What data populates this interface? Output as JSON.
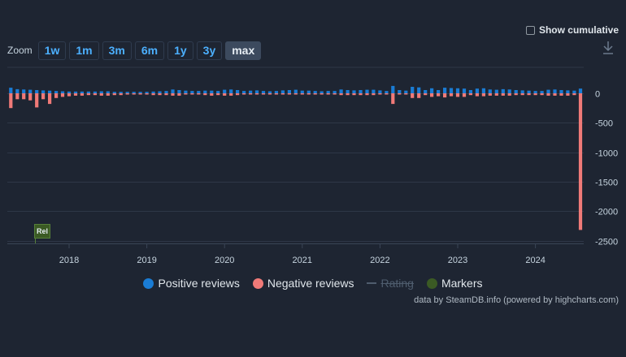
{
  "toolbar": {
    "zoom_label": "Zoom",
    "zoom_buttons": [
      "1w",
      "1m",
      "3m",
      "6m",
      "1y",
      "3y",
      "max"
    ],
    "active_zoom": "max",
    "show_cumulative": "Show cumulative"
  },
  "legend": {
    "positive": "Positive reviews",
    "negative": "Negative reviews",
    "rating": "Rating",
    "markers": "Markers"
  },
  "credits": "data by SteamDB.info (powered by highcharts.com)",
  "marker": {
    "label": "Rel"
  },
  "colors": {
    "positive": "#1a7cd4",
    "negative": "#f07a78",
    "markers": "#3b5a24",
    "grid": "#2e3747",
    "label": "#c6d4df"
  },
  "chart_data": {
    "type": "bar",
    "x_ticks": [
      "2018",
      "2019",
      "2020",
      "2021",
      "2022",
      "2023",
      "2024"
    ],
    "y_ticks": [
      "0",
      "-500",
      "-1000",
      "-1500",
      "-2000",
      "-2500"
    ],
    "ylim": [
      -2500,
      150
    ],
    "x_range": [
      "2017-04",
      "2024-08"
    ],
    "bar_period": "month",
    "series": [
      {
        "name": "Positive reviews",
        "color": "#1a7cd4",
        "values": [
          95,
          70,
          65,
          60,
          55,
          50,
          45,
          40,
          35,
          30,
          30,
          30,
          30,
          30,
          35,
          35,
          25,
          25,
          25,
          25,
          25,
          25,
          30,
          35,
          40,
          65,
          55,
          45,
          40,
          40,
          45,
          45,
          40,
          60,
          65,
          55,
          40,
          45,
          50,
          40,
          35,
          40,
          50,
          55,
          60,
          45,
          45,
          40,
          35,
          40,
          40,
          65,
          55,
          50,
          55,
          60,
          60,
          50,
          40,
          125,
          55,
          45,
          110,
          100,
          55,
          85,
          55,
          95,
          90,
          85,
          80,
          55,
          80,
          85,
          65,
          60,
          70,
          65,
          55,
          50,
          45,
          40,
          40,
          60,
          65,
          55,
          50,
          45,
          80
        ]
      },
      {
        "name": "Negative reviews",
        "color": "#f07a78",
        "values": [
          -250,
          -100,
          -100,
          -120,
          -240,
          -100,
          -180,
          -80,
          -60,
          -50,
          -40,
          -40,
          -30,
          -30,
          -40,
          -40,
          -30,
          -30,
          -20,
          -20,
          -20,
          -20,
          -30,
          -30,
          -30,
          -40,
          -40,
          -20,
          -20,
          -20,
          -30,
          -40,
          -30,
          -40,
          -40,
          -30,
          -20,
          -20,
          -20,
          -20,
          -20,
          -20,
          -20,
          -20,
          -20,
          -20,
          -20,
          -20,
          -20,
          -20,
          -20,
          -30,
          -30,
          -30,
          -30,
          -30,
          -30,
          -20,
          -20,
          -180,
          -20,
          -20,
          -80,
          -80,
          -30,
          -60,
          -50,
          -70,
          -50,
          -60,
          -60,
          -30,
          -50,
          -50,
          -40,
          -40,
          -40,
          -40,
          -30,
          -30,
          -30,
          -30,
          -30,
          -40,
          -40,
          -40,
          -40,
          -30,
          -2320
        ]
      }
    ]
  }
}
